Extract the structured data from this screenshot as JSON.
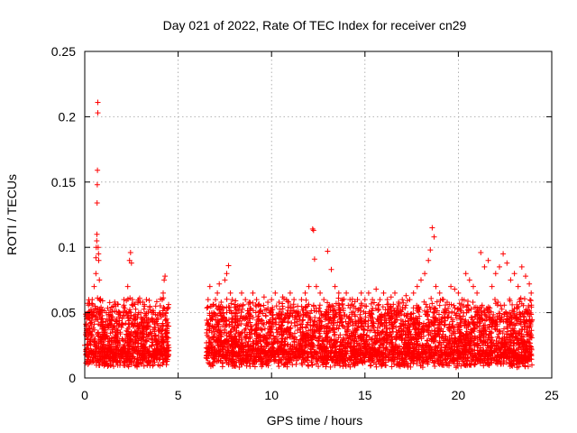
{
  "chart_data": {
    "type": "scatter",
    "title": "Day 021 of 2022, Rate Of TEC Index for receiver cn29",
    "xlabel": "GPS time / hours",
    "ylabel": "ROTI / TECUs",
    "xlim": [
      0,
      25
    ],
    "ylim": [
      0,
      0.25
    ],
    "xticks": [
      0,
      5,
      10,
      15,
      20,
      25
    ],
    "yticks": [
      0,
      0.05,
      0.1,
      0.15,
      0.2,
      0.25
    ],
    "xtick_labels": [
      "0",
      "5",
      "10",
      "15",
      "20",
      "25"
    ],
    "ytick_labels": [
      "0",
      "0.05",
      "0.1",
      "0.15",
      "0.2",
      "0.25"
    ],
    "grid": true,
    "legend": "none",
    "marker": "+",
    "marker_color": "#ff0000",
    "data_gap_hours": [
      4.5,
      6.5
    ],
    "series": [
      {
        "x": [
          0.0,
          0.1,
          0.15,
          0.2,
          0.25,
          0.3,
          0.35,
          0.4,
          0.45,
          0.5,
          0.55,
          0.6,
          0.6,
          0.62,
          0.64,
          0.65,
          0.66,
          0.67,
          0.68,
          0.7,
          0.7,
          0.72,
          0.74,
          0.75,
          0.78,
          0.8,
          0.85,
          0.9,
          0.95,
          1.0,
          1.1,
          1.2,
          1.3,
          1.4,
          1.5,
          1.6,
          1.7,
          1.8,
          1.9,
          2.0,
          2.1,
          2.2,
          2.3,
          2.4,
          2.45,
          2.5,
          2.55,
          2.6,
          2.7,
          2.8,
          2.9,
          3.0,
          3.1,
          3.2,
          3.3,
          3.4,
          3.5,
          3.6,
          3.7,
          3.8,
          3.9,
          4.0,
          4.1,
          4.15,
          4.2,
          4.25,
          4.3,
          4.35,
          4.4,
          4.45,
          6.6,
          6.7,
          6.8,
          6.9,
          7.0,
          7.1,
          7.2,
          7.3,
          7.4,
          7.5,
          7.6,
          7.7,
          7.8,
          7.9,
          8.0,
          8.2,
          8.4,
          8.6,
          8.8,
          9.0,
          9.2,
          9.4,
          9.6,
          9.8,
          10.0,
          10.2,
          10.4,
          10.6,
          10.8,
          11.0,
          11.2,
          11.4,
          11.6,
          11.8,
          12.0,
          12.2,
          12.25,
          12.3,
          12.4,
          12.6,
          12.8,
          13.0,
          13.2,
          13.4,
          13.6,
          13.8,
          14.0,
          14.2,
          14.4,
          14.6,
          14.8,
          15.0,
          15.2,
          15.4,
          15.6,
          15.8,
          16.0,
          16.2,
          16.4,
          16.6,
          16.8,
          17.0,
          17.2,
          17.4,
          17.6,
          17.8,
          18.0,
          18.2,
          18.4,
          18.5,
          18.6,
          18.7,
          18.8,
          19.0,
          19.2,
          19.4,
          19.6,
          19.8,
          20.0,
          20.2,
          20.4,
          20.6,
          20.8,
          21.0,
          21.2,
          21.4,
          21.6,
          21.8,
          22.0,
          22.2,
          22.4,
          22.6,
          22.8,
          23.0,
          23.2,
          23.4,
          23.6,
          23.8,
          23.9
        ],
        "y": [
          0.025,
          0.045,
          0.03,
          0.05,
          0.02,
          0.035,
          0.04,
          0.06,
          0.05,
          0.07,
          0.055,
          0.08,
          0.092,
          0.1,
          0.105,
          0.11,
          0.134,
          0.148,
          0.159,
          0.203,
          0.211,
          0.1,
          0.095,
          0.09,
          0.075,
          0.06,
          0.05,
          0.045,
          0.04,
          0.035,
          0.03,
          0.045,
          0.05,
          0.04,
          0.035,
          0.03,
          0.045,
          0.04,
          0.035,
          0.03,
          0.06,
          0.05,
          0.07,
          0.09,
          0.096,
          0.088,
          0.06,
          0.045,
          0.035,
          0.03,
          0.04,
          0.05,
          0.045,
          0.055,
          0.06,
          0.04,
          0.035,
          0.045,
          0.05,
          0.055,
          0.045,
          0.05,
          0.04,
          0.06,
          0.065,
          0.075,
          0.078,
          0.05,
          0.035,
          0.025,
          0.06,
          0.07,
          0.055,
          0.05,
          0.06,
          0.065,
          0.072,
          0.058,
          0.05,
          0.075,
          0.08,
          0.086,
          0.065,
          0.06,
          0.05,
          0.055,
          0.065,
          0.06,
          0.058,
          0.065,
          0.06,
          0.055,
          0.062,
          0.058,
          0.06,
          0.065,
          0.058,
          0.062,
          0.06,
          0.065,
          0.06,
          0.055,
          0.06,
          0.065,
          0.07,
          0.114,
          0.113,
          0.091,
          0.07,
          0.065,
          0.06,
          0.097,
          0.083,
          0.07,
          0.065,
          0.06,
          0.065,
          0.06,
          0.055,
          0.06,
          0.065,
          0.06,
          0.065,
          0.06,
          0.068,
          0.06,
          0.065,
          0.06,
          0.062,
          0.065,
          0.058,
          0.06,
          0.063,
          0.06,
          0.065,
          0.07,
          0.075,
          0.08,
          0.09,
          0.098,
          0.115,
          0.108,
          0.07,
          0.065,
          0.06,
          0.058,
          0.07,
          0.068,
          0.065,
          0.06,
          0.08,
          0.075,
          0.07,
          0.065,
          0.096,
          0.085,
          0.09,
          0.07,
          0.08,
          0.085,
          0.095,
          0.088,
          0.075,
          0.08,
          0.07,
          0.085,
          0.078,
          0.072,
          0.065
        ]
      }
    ]
  }
}
